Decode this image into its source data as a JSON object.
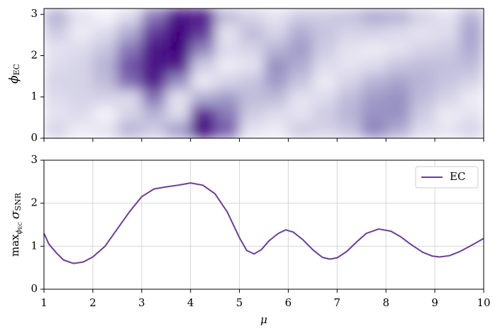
{
  "chart_data": [
    {
      "type": "heatmap",
      "ylabel": [
        "ϕ",
        "EC"
      ],
      "x": [
        1.25,
        1.75,
        2.25,
        2.75,
        3.25,
        3.75,
        4.25,
        4.75,
        5.25,
        5.75,
        6.25,
        6.75,
        7.25,
        7.75,
        8.25,
        8.75,
        9.25,
        9.75
      ],
      "y": [
        0.2,
        0.59,
        0.98,
        1.37,
        1.77,
        2.16,
        2.55,
        2.95
      ],
      "z": [
        [
          0.5,
          0.2,
          0.3,
          0.9,
          0.6,
          1.2,
          2.4,
          1.7,
          0.3,
          0.2,
          0.6,
          0.5,
          0.7,
          1.4,
          1.0,
          0.4,
          0.3,
          0.5
        ],
        [
          0.3,
          0.4,
          0.1,
          0.5,
          0.9,
          0.4,
          2.1,
          1.5,
          0.6,
          0.4,
          0.3,
          0.6,
          0.9,
          1.3,
          1.3,
          0.6,
          0.2,
          0.3
        ],
        [
          0.4,
          0.5,
          0.5,
          0.4,
          1.5,
          0.3,
          1.0,
          1.2,
          0.8,
          0.8,
          0.3,
          0.4,
          0.8,
          1.2,
          1.3,
          0.8,
          0.5,
          0.2
        ],
        [
          0.5,
          0.5,
          0.8,
          1.6,
          2.2,
          1.3,
          0.2,
          0.5,
          0.7,
          1.2,
          0.7,
          0.2,
          0.5,
          0.9,
          1.1,
          0.9,
          0.7,
          0.5
        ],
        [
          0.4,
          0.5,
          0.9,
          1.8,
          2.3,
          2.2,
          0.6,
          0.2,
          0.3,
          1.3,
          1.0,
          0.4,
          0.3,
          0.4,
          0.7,
          0.8,
          0.75,
          0.8
        ],
        [
          0.3,
          0.4,
          0.7,
          1.5,
          2.3,
          2.45,
          1.4,
          0.4,
          0.5,
          0.9,
          1.2,
          0.6,
          0.3,
          0.2,
          0.3,
          0.5,
          0.6,
          1.0
        ],
        [
          0.6,
          0.2,
          0.4,
          1.0,
          2.0,
          2.4,
          2.0,
          0.3,
          0.8,
          0.5,
          1.0,
          0.7,
          0.5,
          0.5,
          0.4,
          0.3,
          0.4,
          1.1
        ],
        [
          0.9,
          0.3,
          0.1,
          0.4,
          1.5,
          2.3,
          2.2,
          0.8,
          0.5,
          0.3,
          0.6,
          0.6,
          0.7,
          1.0,
          0.9,
          0.5,
          0.3,
          0.9
        ]
      ],
      "colors": [
        "#fcfbfd",
        "#9e9ac8",
        "#3f007d"
      ],
      "xlim": [
        1,
        10
      ],
      "xticks": [
        1,
        2,
        3,
        4,
        5,
        6,
        7,
        8,
        9,
        10
      ],
      "ylim": [
        0,
        3.1416
      ],
      "yticks": [
        0,
        1,
        2,
        3
      ]
    },
    {
      "type": "line",
      "xlabel": "μ",
      "ylabel": [
        "max",
        "ϕ",
        "EC",
        "σ",
        "SNR"
      ],
      "x": [
        1,
        1.1,
        1.25,
        1.4,
        1.6,
        1.8,
        2,
        2.25,
        2.5,
        2.75,
        3,
        3.25,
        3.5,
        3.75,
        4,
        4.25,
        4.5,
        4.75,
        5,
        5.15,
        5.3,
        5.45,
        5.6,
        5.8,
        5.95,
        6.1,
        6.3,
        6.5,
        6.7,
        6.85,
        7,
        7.2,
        7.4,
        7.6,
        7.85,
        8.1,
        8.3,
        8.5,
        8.75,
        8.95,
        9.1,
        9.3,
        9.5,
        9.75,
        10
      ],
      "series": [
        {
          "name": "EC",
          "color": "#6a3d9a",
          "values": [
            1.3,
            1.05,
            0.85,
            0.68,
            0.6,
            0.63,
            0.75,
            1.0,
            1.4,
            1.8,
            2.15,
            2.33,
            2.38,
            2.42,
            2.47,
            2.42,
            2.22,
            1.8,
            1.2,
            0.9,
            0.82,
            0.92,
            1.12,
            1.3,
            1.38,
            1.33,
            1.15,
            0.92,
            0.74,
            0.7,
            0.73,
            0.88,
            1.1,
            1.3,
            1.4,
            1.35,
            1.22,
            1.05,
            0.86,
            0.77,
            0.75,
            0.78,
            0.87,
            1.02,
            1.18
          ]
        }
      ],
      "xlim": [
        1,
        10
      ],
      "xticks": [
        1,
        2,
        3,
        4,
        5,
        6,
        7,
        8,
        9,
        10
      ],
      "ylim": [
        0,
        3
      ],
      "yticks": [
        0,
        1,
        2,
        3
      ],
      "grid": true,
      "legend": "upper right"
    }
  ]
}
